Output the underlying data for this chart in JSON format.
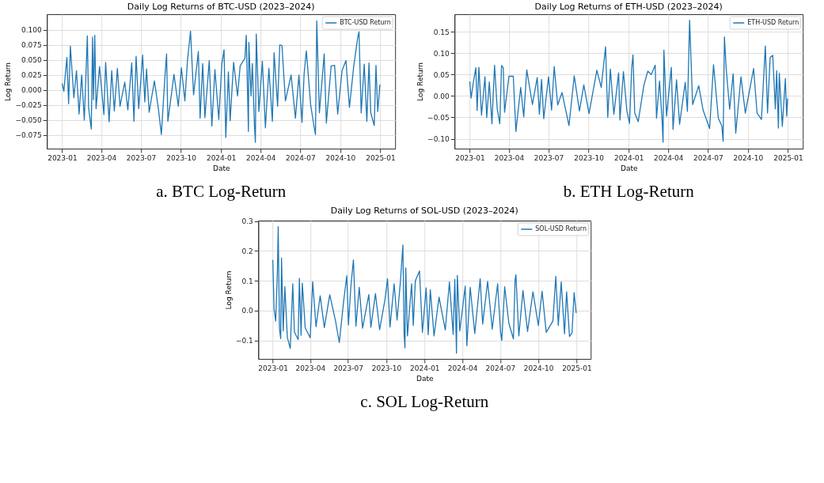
{
  "chart_data": [
    {
      "type": "line",
      "title": "Daily Log Returns of BTC-USD (2023–2024)",
      "xlabel": "Date",
      "ylabel": "Log Return",
      "annotations": [
        "a.    BTC Log-Return"
      ],
      "grid": true,
      "legend": "top right",
      "line_style": "solid",
      "marker": "none",
      "xlim": [
        "2022-11-27",
        "2025-02-04"
      ],
      "xticks": [
        "2023-01",
        "2023-04",
        "2023-07",
        "2023-10",
        "2024-01",
        "2024-04",
        "2024-07",
        "2024-10",
        "2025-01"
      ],
      "ylim": [
        -0.0975,
        0.126
      ],
      "yticks": [
        {
          "value": -0.075,
          "label": "−0.075"
        },
        {
          "value": -0.05,
          "label": "−0.050"
        },
        {
          "value": -0.025,
          "label": "−0.025"
        },
        {
          "value": 0,
          "label": "0.000"
        },
        {
          "value": 0.025,
          "label": "0.025"
        },
        {
          "value": 0.05,
          "label": "0.050"
        },
        {
          "value": 0.075,
          "label": "0.075"
        },
        {
          "value": 0.1,
          "label": "0.100"
        }
      ],
      "series": [
        {
          "name": "BTC-USD Return",
          "color": "#1f77b4",
          "x": [
            "2023-01-01",
            "2023-01-05",
            "2023-01-12",
            "2023-01-16",
            "2023-01-20",
            "2023-01-28",
            "2023-02-03",
            "2023-02-09",
            "2023-02-15",
            "2023-02-21",
            "2023-02-28",
            "2023-03-03",
            "2023-03-09",
            "2023-03-12",
            "2023-03-14",
            "2023-03-17",
            "2023-03-20",
            "2023-03-28",
            "2023-04-07",
            "2023-04-11",
            "2023-04-19",
            "2023-04-25",
            "2023-05-01",
            "2023-05-08",
            "2023-05-14",
            "2023-05-25",
            "2023-06-01",
            "2023-06-10",
            "2023-06-15",
            "2023-06-20",
            "2023-06-26",
            "2023-07-05",
            "2023-07-10",
            "2023-07-14",
            "2023-07-20",
            "2023-08-01",
            "2023-08-10",
            "2023-08-17",
            "2023-08-25",
            "2023-08-29",
            "2023-09-01",
            "2023-09-15",
            "2023-09-25",
            "2023-10-02",
            "2023-10-10",
            "2023-10-16",
            "2023-10-23",
            "2023-10-30",
            "2023-11-10",
            "2023-11-14",
            "2023-11-20",
            "2023-11-25",
            "2023-12-05",
            "2023-12-11",
            "2023-12-18",
            "2023-12-27",
            "2024-01-03",
            "2024-01-08",
            "2024-01-12",
            "2024-01-18",
            "2024-01-22",
            "2024-01-30",
            "2024-02-08",
            "2024-02-14",
            "2024-02-25",
            "2024-02-28",
            "2024-03-04",
            "2024-03-05",
            "2024-03-10",
            "2024-03-13",
            "2024-03-18",
            "2024-03-20",
            "2024-03-22",
            "2024-03-28",
            "2024-04-05",
            "2024-04-12",
            "2024-04-20",
            "2024-04-28",
            "2024-05-02",
            "2024-05-10",
            "2024-05-15",
            "2024-05-20",
            "2024-05-28",
            "2024-06-10",
            "2024-06-20",
            "2024-06-28",
            "2024-07-05",
            "2024-07-10",
            "2024-07-15",
            "2024-07-25",
            "2024-08-02",
            "2024-08-05",
            "2024-08-08",
            "2024-08-14",
            "2024-08-25",
            "2024-08-30",
            "2024-09-10",
            "2024-09-18",
            "2024-09-25",
            "2024-10-05",
            "2024-10-14",
            "2024-10-22",
            "2024-11-01",
            "2024-11-10",
            "2024-11-13",
            "2024-11-18",
            "2024-11-25",
            "2024-12-01",
            "2024-12-06",
            "2024-12-10",
            "2024-12-18",
            "2024-12-22",
            "2024-12-26",
            "2024-12-31"
          ],
          "values": [
            0.011,
            -0.002,
            0.054,
            -0.023,
            0.073,
            -0.013,
            0.032,
            -0.04,
            0.025,
            -0.05,
            0.09,
            -0.03,
            -0.065,
            0.088,
            -0.016,
            0.091,
            -0.031,
            0.039,
            -0.041,
            0.046,
            -0.053,
            0.032,
            -0.035,
            0.036,
            -0.027,
            0.013,
            -0.033,
            0.045,
            -0.052,
            0.056,
            -0.031,
            0.058,
            -0.02,
            0.035,
            -0.037,
            0.015,
            -0.03,
            -0.074,
            0.02,
            0.06,
            -0.052,
            0.026,
            -0.027,
            0.037,
            -0.018,
            0.049,
            0.098,
            -0.008,
            0.064,
            -0.047,
            0.044,
            -0.046,
            0.049,
            -0.06,
            0.034,
            -0.049,
            0.044,
            0.067,
            -0.079,
            0.03,
            -0.051,
            0.046,
            -0.01,
            0.04,
            0.053,
            0.091,
            -0.069,
            0.079,
            -0.01,
            0.044,
            -0.062,
            -0.087,
            0.093,
            -0.036,
            0.048,
            -0.063,
            0.036,
            -0.052,
            0.062,
            -0.027,
            0.075,
            0.074,
            -0.018,
            0.025,
            -0.047,
            0.025,
            -0.054,
            0.028,
            0.065,
            -0.025,
            -0.062,
            -0.074,
            0.115,
            -0.038,
            0.06,
            -0.055,
            0.04,
            0.041,
            -0.04,
            0.032,
            0.049,
            -0.029,
            0.04,
            0.087,
            0.097,
            -0.038,
            0.043,
            -0.052,
            0.045,
            -0.038,
            -0.059,
            0.041,
            -0.036,
            0.009
          ]
        }
      ]
    },
    {
      "type": "line",
      "title": "Daily Log Returns of ETH-USD (2023–2024)",
      "xlabel": "Date",
      "ylabel": "Log Return",
      "annotations": [
        "b.    ETH Log-Return"
      ],
      "grid": true,
      "legend": "top right",
      "line_style": "solid",
      "marker": "none",
      "xlim": [
        "2022-11-27",
        "2025-02-04"
      ],
      "xticks": [
        "2023-01",
        "2023-04",
        "2023-07",
        "2023-10",
        "2024-01",
        "2024-04",
        "2024-07",
        "2024-10",
        "2025-01"
      ],
      "ylim": [
        -0.123,
        0.191
      ],
      "yticks": [
        {
          "value": -0.1,
          "label": "−0.10"
        },
        {
          "value": -0.05,
          "label": "−0.05"
        },
        {
          "value": 0,
          "label": "0.00"
        },
        {
          "value": 0.05,
          "label": "0.05"
        },
        {
          "value": 0.1,
          "label": "0.10"
        },
        {
          "value": 0.15,
          "label": "0.15"
        }
      ],
      "series": [
        {
          "name": "ETH-USD Return",
          "color": "#1f77b4",
          "x": [
            "2023-01-01",
            "2023-01-04",
            "2023-01-10",
            "2023-01-15",
            "2023-01-18",
            "2023-01-22",
            "2023-01-28",
            "2023-02-05",
            "2023-02-09",
            "2023-02-15",
            "2023-02-21",
            "2023-02-27",
            "2023-03-05",
            "2023-03-11",
            "2023-03-15",
            "2023-03-19",
            "2023-03-22",
            "2023-04-01",
            "2023-04-11",
            "2023-04-17",
            "2023-04-28",
            "2023-05-05",
            "2023-05-12",
            "2023-05-25",
            "2023-06-05",
            "2023-06-10",
            "2023-06-15",
            "2023-06-20",
            "2023-07-01",
            "2023-07-08",
            "2023-07-14",
            "2023-07-22",
            "2023-08-01",
            "2023-08-17",
            "2023-08-29",
            "2023-09-10",
            "2023-09-20",
            "2023-10-02",
            "2023-10-20",
            "2023-10-30",
            "2023-11-09",
            "2023-11-14",
            "2023-11-20",
            "2023-11-28",
            "2023-12-09",
            "2023-12-12",
            "2023-12-20",
            "2023-12-28",
            "2024-01-03",
            "2024-01-08",
            "2024-01-11",
            "2024-01-15",
            "2024-01-23",
            "2024-02-05",
            "2024-02-14",
            "2024-02-22",
            "2024-03-02",
            "2024-03-05",
            "2024-03-12",
            "2024-03-18",
            "2024-03-20",
            "2024-03-22",
            "2024-03-28",
            "2024-04-08",
            "2024-04-12",
            "2024-04-20",
            "2024-04-27",
            "2024-05-10",
            "2024-05-15",
            "2024-05-20",
            "2024-05-27",
            "2024-06-10",
            "2024-06-20",
            "2024-07-05",
            "2024-07-14",
            "2024-07-25",
            "2024-08-02",
            "2024-08-05",
            "2024-08-08",
            "2024-08-12",
            "2024-08-20",
            "2024-08-28",
            "2024-09-03",
            "2024-09-15",
            "2024-09-25",
            "2024-10-14",
            "2024-10-22",
            "2024-11-01",
            "2024-11-10",
            "2024-11-15",
            "2024-11-21",
            "2024-11-27",
            "2024-12-03",
            "2024-12-06",
            "2024-12-10",
            "2024-12-12",
            "2024-12-19",
            "2024-12-26",
            "2024-12-29",
            "2024-12-31"
          ],
          "values": [
            0.034,
            -0.005,
            0.036,
            0.066,
            -0.034,
            0.067,
            -0.045,
            0.045,
            -0.05,
            0.033,
            -0.065,
            0.072,
            -0.029,
            -0.065,
            0.071,
            0.066,
            -0.038,
            0.046,
            0.046,
            -0.083,
            0.02,
            -0.049,
            0.061,
            -0.02,
            0.043,
            -0.043,
            0.039,
            -0.053,
            0.045,
            -0.033,
            0.069,
            -0.021,
            0.008,
            -0.069,
            0.047,
            -0.035,
            0.026,
            -0.041,
            0.06,
            0.02,
            0.115,
            -0.05,
            0.063,
            -0.043,
            0.054,
            -0.056,
            0.057,
            -0.035,
            -0.064,
            0.065,
            0.096,
            -0.04,
            -0.06,
            0.025,
            0.058,
            0.05,
            0.072,
            -0.052,
            0.035,
            -0.06,
            -0.108,
            0.107,
            -0.047,
            0.067,
            -0.078,
            0.038,
            -0.066,
            0.032,
            -0.036,
            0.177,
            -0.02,
            0.024,
            -0.033,
            -0.076,
            0.073,
            -0.052,
            -0.07,
            -0.106,
            0.138,
            0.065,
            -0.031,
            0.052,
            -0.087,
            0.045,
            -0.04,
            0.064,
            -0.04,
            -0.055,
            0.117,
            -0.04,
            0.09,
            0.095,
            -0.03,
            0.059,
            -0.075,
            0.053,
            -0.071,
            0.041,
            -0.047,
            -0.006
          ]
        }
      ]
    },
    {
      "type": "line",
      "title": "Daily Log Returns of SOL-USD (2023–2024)",
      "xlabel": "Date",
      "ylabel": "Log Return",
      "annotations": [
        "c.    SOL Log-Return"
      ],
      "grid": true,
      "legend": "top right",
      "line_style": "solid",
      "marker": "none",
      "xlim": [
        "2022-11-27",
        "2025-02-04"
      ],
      "xticks": [
        "2023-01",
        "2023-04",
        "2023-07",
        "2023-10",
        "2024-01",
        "2024-04",
        "2024-07",
        "2024-10",
        "2025-01"
      ],
      "ylim": [
        -0.162,
        0.302
      ],
      "yticks": [
        {
          "value": -0.1,
          "label": "−0.1"
        },
        {
          "value": 0,
          "label": "0.0"
        },
        {
          "value": 0.1,
          "label": "0.1"
        },
        {
          "value": 0.2,
          "label": "0.2"
        },
        {
          "value": 0.3,
          "label": "0.3"
        }
      ],
      "series": [
        {
          "name": "SOL-USD Return",
          "color": "#1f77b4",
          "x": [
            "2023-01-01",
            "2023-01-04",
            "2023-01-08",
            "2023-01-12",
            "2023-01-14",
            "2023-01-17",
            "2023-01-20",
            "2023-01-22",
            "2023-01-26",
            "2023-01-30",
            "2023-02-05",
            "2023-02-12",
            "2023-02-18",
            "2023-02-22",
            "2023-03-03",
            "2023-03-06",
            "2023-03-10",
            "2023-03-13",
            "2023-03-20",
            "2023-04-01",
            "2023-04-07",
            "2023-04-15",
            "2023-04-25",
            "2023-05-05",
            "2023-05-18",
            "2023-06-01",
            "2023-06-10",
            "2023-06-20",
            "2023-06-28",
            "2023-07-02",
            "2023-07-08",
            "2023-07-14",
            "2023-07-20",
            "2023-07-28",
            "2023-08-05",
            "2023-08-20",
            "2023-08-25",
            "2023-09-05",
            "2023-09-15",
            "2023-09-28",
            "2023-10-04",
            "2023-10-10",
            "2023-10-20",
            "2023-10-27",
            "2023-11-04",
            "2023-11-10",
            "2023-11-13",
            "2023-11-15",
            "2023-11-17",
            "2023-11-21",
            "2023-12-01",
            "2023-12-05",
            "2023-12-10",
            "2023-12-20",
            "2023-12-27",
            "2024-01-05",
            "2024-01-10",
            "2024-01-15",
            "2024-01-24",
            "2024-02-05",
            "2024-02-20",
            "2024-03-01",
            "2024-03-10",
            "2024-03-14",
            "2024-03-18",
            "2024-03-20",
            "2024-03-26",
            "2024-04-08",
            "2024-04-12",
            "2024-04-20",
            "2024-05-01",
            "2024-05-14",
            "2024-05-20",
            "2024-06-01",
            "2024-06-12",
            "2024-06-25",
            "2024-07-02",
            "2024-07-05",
            "2024-07-12",
            "2024-07-22",
            "2024-08-02",
            "2024-08-06",
            "2024-08-08",
            "2024-08-15",
            "2024-08-25",
            "2024-09-05",
            "2024-09-18",
            "2024-10-01",
            "2024-10-10",
            "2024-10-20",
            "2024-11-05",
            "2024-11-12",
            "2024-11-18",
            "2024-11-25",
            "2024-12-03",
            "2024-12-08",
            "2024-12-15",
            "2024-12-21",
            "2024-12-26",
            "2024-12-31"
          ],
          "values": [
            0.17,
            0.005,
            -0.035,
            0.13,
            0.282,
            -0.06,
            -0.094,
            0.176,
            -0.068,
            0.08,
            -0.09,
            -0.127,
            0.09,
            -0.072,
            -0.097,
            0.108,
            -0.083,
            0.092,
            -0.058,
            -0.091,
            0.097,
            -0.054,
            0.05,
            -0.057,
            0.053,
            -0.035,
            -0.107,
            0.026,
            0.117,
            -0.048,
            0.084,
            0.17,
            -0.052,
            0.078,
            -0.059,
            0.054,
            -0.056,
            0.057,
            -0.064,
            0.037,
            0.107,
            -0.055,
            0.09,
            -0.032,
            0.096,
            0.22,
            -0.08,
            -0.125,
            0.143,
            -0.085,
            0.09,
            -0.05,
            0.1,
            0.133,
            -0.073,
            0.076,
            -0.081,
            0.07,
            -0.085,
            0.045,
            -0.065,
            0.096,
            -0.08,
            0.105,
            -0.143,
            0.118,
            -0.068,
            0.082,
            -0.118,
            0.078,
            -0.077,
            0.107,
            -0.045,
            0.098,
            -0.062,
            0.09,
            -0.072,
            -0.1,
            0.08,
            -0.042,
            -0.095,
            0.103,
            0.12,
            -0.085,
            0.067,
            -0.07,
            0.063,
            -0.05,
            0.065,
            -0.073,
            -0.035,
            0.115,
            -0.05,
            0.096,
            -0.078,
            0.063,
            -0.087,
            -0.075,
            0.06,
            -0.008
          ]
        }
      ]
    }
  ]
}
